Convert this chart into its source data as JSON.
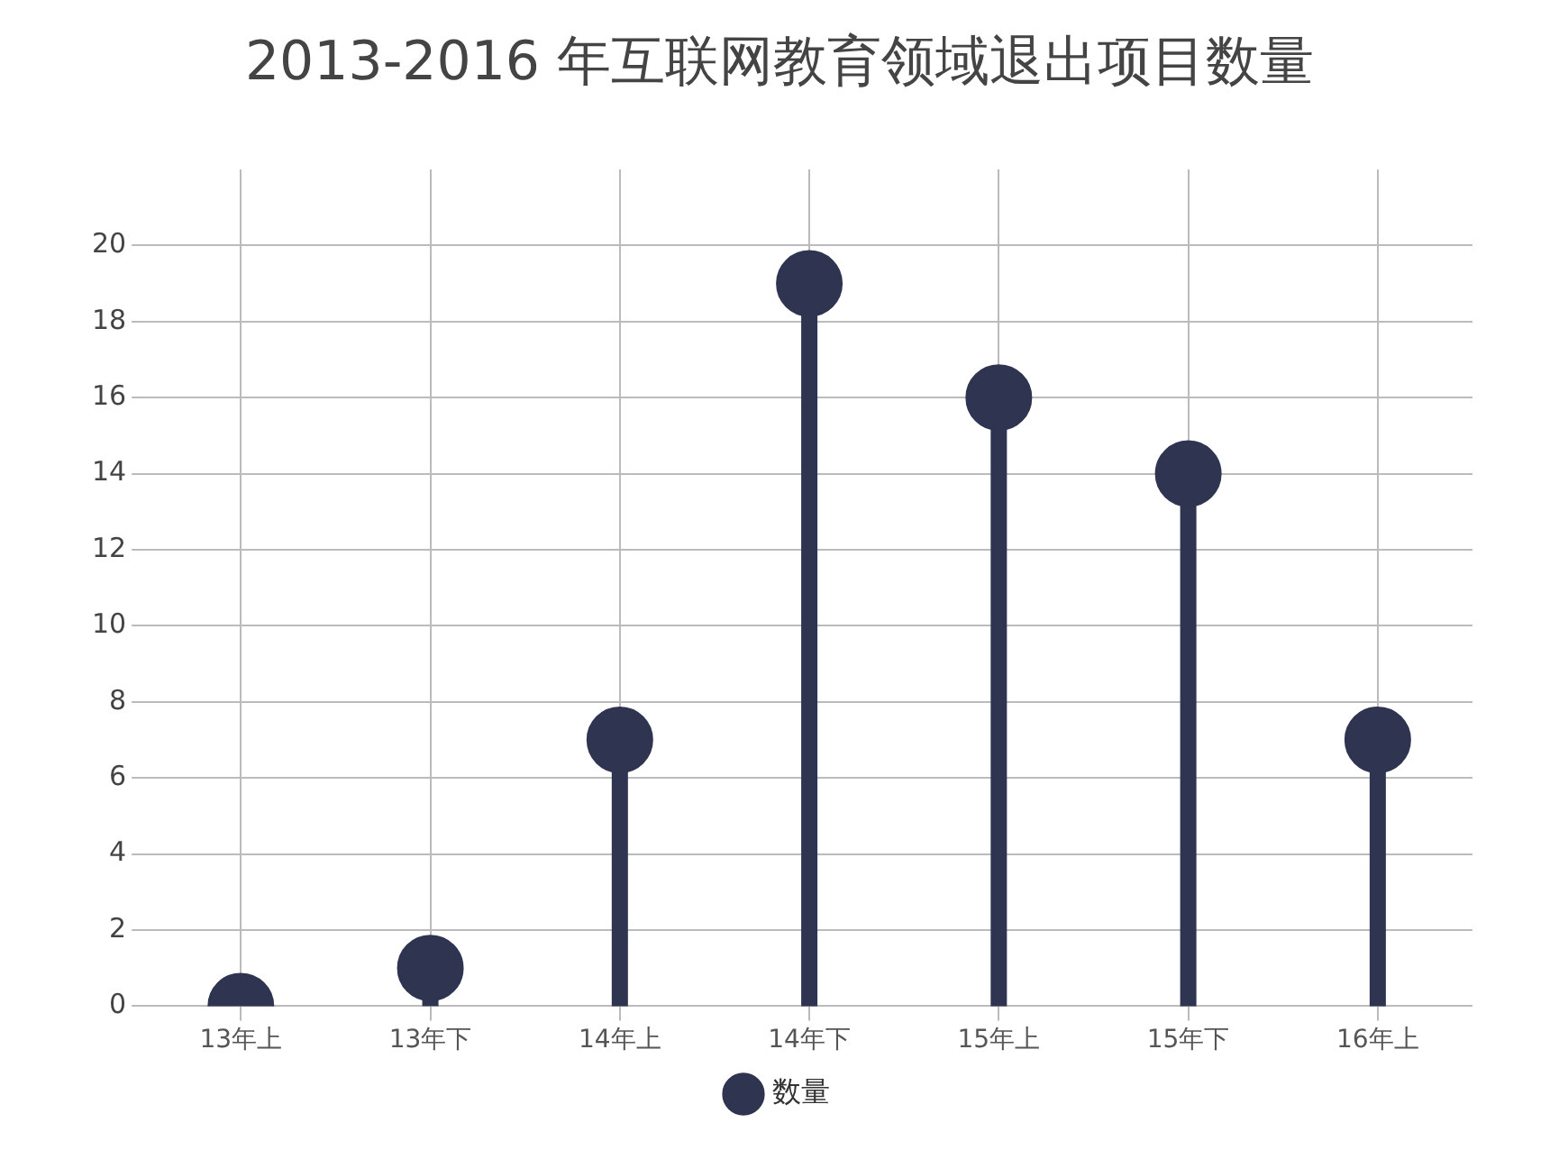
{
  "chart_data": {
    "type": "lollipop",
    "title": "2013-2016 年互联网教育领域退出项目数量",
    "categories": [
      "13年上",
      "13年下",
      "14年上",
      "14年下",
      "15年上",
      "15年下",
      "16年上"
    ],
    "series": [
      {
        "name": "数量",
        "color": "#2f3450",
        "values": [
          0,
          1,
          7,
          19,
          16,
          14,
          7
        ]
      }
    ],
    "ylim": [
      0,
      22
    ],
    "yticks": [
      0,
      2,
      4,
      6,
      8,
      10,
      12,
      14,
      16,
      18,
      20
    ],
    "grid": true,
    "legend": "bottom",
    "marker": "circle"
  }
}
